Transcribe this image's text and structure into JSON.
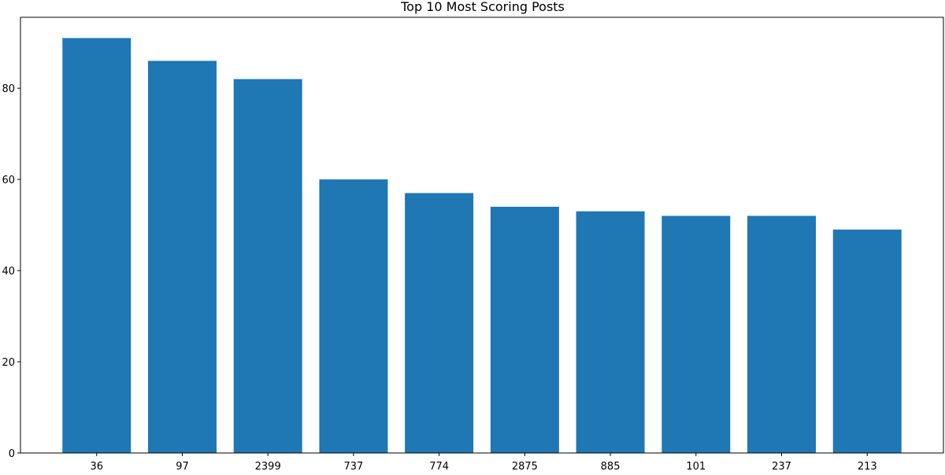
{
  "chart_data": {
    "type": "bar",
    "title": "Top 10 Most Scoring Posts",
    "xlabel": "",
    "ylabel": "",
    "categories": [
      "36",
      "97",
      "2399",
      "737",
      "774",
      "2875",
      "885",
      "101",
      "237",
      "213"
    ],
    "values": [
      91,
      86,
      82,
      60,
      57,
      54,
      53,
      52,
      52,
      49
    ],
    "ylim": [
      0,
      95.55
    ],
    "yticks": [
      0,
      20,
      40,
      60,
      80
    ],
    "grid": false,
    "legend": "none",
    "bar_color": "#1f77b4"
  }
}
